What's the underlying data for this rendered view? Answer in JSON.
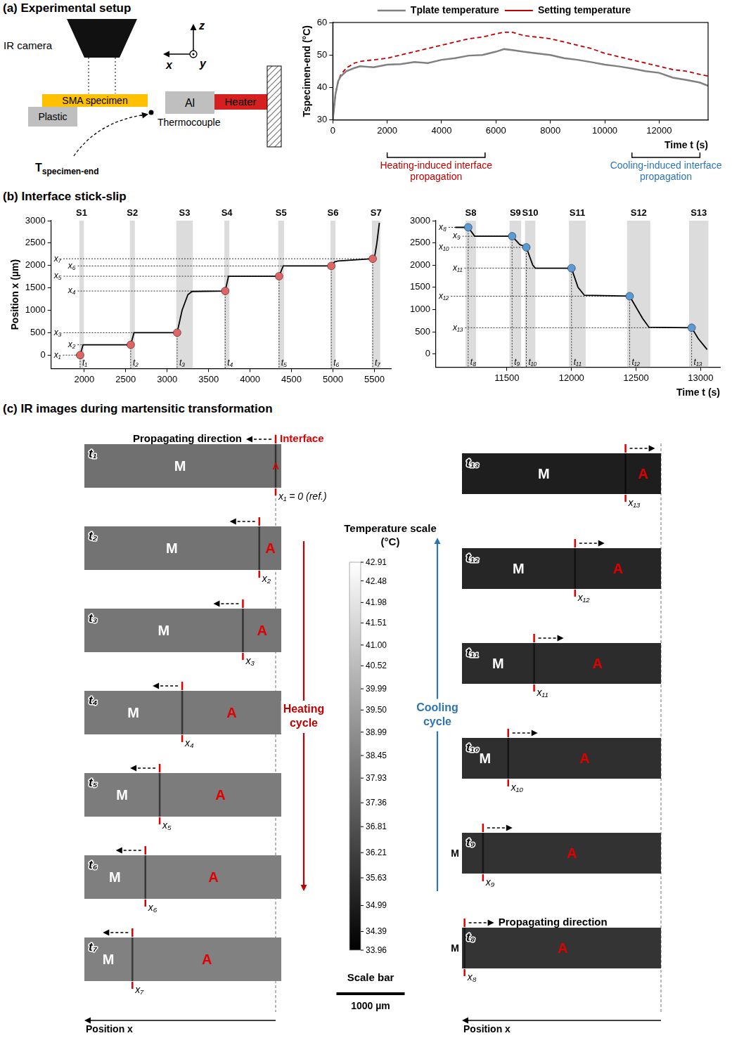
{
  "panel_titles": {
    "a": "(a) Experimental setup",
    "b": "(b) Interface stick-slip",
    "c": "(c) IR images during martensitic transformation"
  },
  "setup_diagram": {
    "camera": "IR camera",
    "specimen": "SMA specimen",
    "plastic": "Plastic",
    "aluminium": "Al",
    "heater": "Heater",
    "thermocouple": "Thermocouple",
    "sensor": "Tspecimen-end",
    "axes": {
      "x": "x",
      "y": "y",
      "z": "z"
    }
  },
  "chart_data": [
    {
      "type": "line",
      "x_label": "Time t (s)",
      "y_label": "Tspecimen-end (°C)",
      "legend": "top",
      "grid": false,
      "xlim": [
        0,
        13800
      ],
      "xticks": [
        0,
        2000,
        4000,
        6000,
        8000,
        10000,
        12000
      ],
      "ylim": [
        30,
        60
      ],
      "yticks": [
        30,
        40,
        50,
        60
      ],
      "series": [
        {
          "name": "Tplate temperature",
          "color": "#808080",
          "line_style": "solid",
          "x": [
            0,
            100,
            200,
            300,
            500,
            800,
            1000,
            1500,
            2000,
            2500,
            3000,
            3500,
            4000,
            4500,
            5000,
            5500,
            6000,
            6300,
            6600,
            7000,
            7500,
            8000,
            8500,
            9000,
            9500,
            10000,
            10500,
            11000,
            11500,
            12000,
            12500,
            13000,
            13500,
            13800
          ],
          "values": [
            30,
            38,
            42,
            43.5,
            45,
            46,
            46.5,
            46.2,
            47,
            47.2,
            47.8,
            47.5,
            48.5,
            49,
            49.8,
            50,
            51,
            51.8,
            51.5,
            51,
            50.5,
            50,
            49,
            48.5,
            47.8,
            47,
            46.5,
            45.8,
            45,
            44.5,
            43,
            42.3,
            41.5,
            40.5
          ]
        },
        {
          "name": "Setting temperature",
          "color": "#c00000",
          "line_style": "dashed",
          "x": [
            0,
            100,
            200,
            300,
            500,
            800,
            1000,
            1500,
            2000,
            2500,
            3000,
            3500,
            4000,
            4500,
            5000,
            5500,
            6000,
            6300,
            6600,
            7000,
            7500,
            8000,
            8500,
            9000,
            9500,
            10000,
            10500,
            11000,
            11500,
            12000,
            12500,
            13000,
            13500,
            13800
          ],
          "values": [
            30,
            38,
            42,
            44,
            46,
            47.5,
            48,
            48.5,
            49,
            50,
            51,
            52,
            53,
            54,
            55,
            55.5,
            56.5,
            57,
            57,
            56,
            55.5,
            55,
            54,
            53,
            52,
            50.5,
            49.5,
            48.5,
            47.5,
            46.5,
            45.5,
            45,
            44,
            43.5
          ]
        }
      ],
      "annotations": [
        {
          "text": "Heating-induced interface propagation",
          "start": 2000,
          "end": 5600,
          "color": "#c00000"
        },
        {
          "text": "Cooling-induced interface propagation",
          "start": 11000,
          "end": 13500,
          "color": "#2e75b6"
        }
      ]
    },
    {
      "type": "line",
      "y_label": "Position x (µm)",
      "grid": false,
      "xlim": [
        1600,
        5700
      ],
      "xticks": [
        2000,
        2500,
        3000,
        3500,
        4000,
        4500,
        5000,
        5500
      ],
      "ylim": [
        -300,
        3000
      ],
      "yticks": [
        0,
        500,
        1000,
        1500,
        2000,
        2500,
        3000
      ],
      "stages": [
        {
          "label": "S1",
          "start": 1940,
          "end": 1995
        },
        {
          "label": "S2",
          "start": 2550,
          "end": 2610
        },
        {
          "label": "S3",
          "start": 3110,
          "end": 3310
        },
        {
          "label": "S4",
          "start": 3690,
          "end": 3750
        },
        {
          "label": "S5",
          "start": 4340,
          "end": 4410
        },
        {
          "label": "S6",
          "start": 4970,
          "end": 5030
        },
        {
          "label": "S7",
          "start": 5470,
          "end": 5570
        }
      ],
      "series": [
        {
          "type": "line",
          "line_style": "solid",
          "color": "#000000",
          "x": [
            1900,
            1950,
            1985,
            2560,
            2600,
            3120,
            3180,
            3250,
            3300,
            3700,
            3740,
            4350,
            4400,
            4980,
            5020,
            5060,
            5480,
            5500,
            5530,
            5560
          ],
          "values": [
            0,
            0,
            230,
            230,
            500,
            500,
            1000,
            1350,
            1420,
            1430,
            1760,
            1760,
            1990,
            1990,
            2080,
            2100,
            2150,
            2160,
            2500,
            2950
          ]
        },
        {
          "type": "scatter",
          "marker": "circle",
          "color": "#e06666",
          "x": [
            1950,
            2560,
            3120,
            3700,
            4350,
            4980,
            5480
          ],
          "values": [
            0,
            230,
            500,
            1430,
            1760,
            1990,
            2150
          ],
          "time_labels": [
            "t₁",
            "t₂",
            "t₃",
            "t₄",
            "t₅",
            "t₆",
            "t₇"
          ],
          "position_labels": [
            "x₁",
            "x₂",
            "x₃",
            "x₄",
            "x₅",
            "x₆",
            "x₇"
          ]
        }
      ]
    },
    {
      "type": "line",
      "x_label": "Time t (s)",
      "grid": false,
      "xlim": [
        10950,
        13150
      ],
      "xticks": [
        11500,
        12000,
        12500,
        13000
      ],
      "ylim": [
        -300,
        3000
      ],
      "yticks": [
        0,
        500,
        1000,
        1500,
        2000,
        2500,
        3000
      ],
      "stages": [
        {
          "label": "S8",
          "start": 11180,
          "end": 11260
        },
        {
          "label": "S9",
          "start": 11520,
          "end": 11610
        },
        {
          "label": "S10",
          "start": 11640,
          "end": 11720
        },
        {
          "label": "S11",
          "start": 11980,
          "end": 12110
        },
        {
          "label": "S12",
          "start": 12430,
          "end": 12610
        },
        {
          "label": "S13",
          "start": 12910,
          "end": 13060
        }
      ],
      "series": [
        {
          "type": "line",
          "line_style": "solid",
          "color": "#000000",
          "x": [
            11100,
            11200,
            11250,
            11540,
            11600,
            11620,
            11650,
            11700,
            11720,
            12000,
            12050,
            12100,
            12450,
            12550,
            12600,
            12930,
            12980,
            13050
          ],
          "values": [
            2850,
            2850,
            2650,
            2650,
            2460,
            2440,
            2400,
            2000,
            1930,
            1930,
            1500,
            1320,
            1300,
            800,
            600,
            590,
            350,
            100
          ]
        },
        {
          "type": "scatter",
          "marker": "circle",
          "color": "#5b9bd5",
          "x": [
            11200,
            11540,
            11650,
            12000,
            12450,
            12930
          ],
          "values": [
            2850,
            2650,
            2400,
            1930,
            1300,
            590
          ],
          "time_labels": [
            "t₈",
            "t₉",
            "t₁₀",
            "t₁₁",
            "t₁₂",
            "t₁₃"
          ],
          "position_labels": [
            "x₈",
            "x₉",
            "x₁₀",
            "x₁₁",
            "x₁₂",
            "x₁₃"
          ]
        }
      ]
    }
  ],
  "ir_images": {
    "interface_label": "Interface",
    "direction_label": "Propagating direction",
    "position_label": "Position x",
    "phase_labels": {
      "martensite": "M",
      "austenite": "A"
    },
    "color_scale": {
      "title": "Temperature scale (°C)",
      "range": [
        33.96,
        42.91
      ],
      "ticks": [
        42.91,
        42.48,
        41.98,
        41.51,
        {
          "value": 41,
          "label": "41.00"
        },
        40.52,
        39.99,
        {
          "value": 39.5,
          "label": "39.50"
        },
        38.99,
        38.45,
        37.93,
        37.36,
        36.81,
        36.21,
        35.63,
        34.99,
        34.39,
        33.96
      ]
    },
    "scale_bar": {
      "title": "Scale bar",
      "length": 1000,
      "label": "1000 µm"
    },
    "heating": {
      "label": "Heating cycle",
      "color": "#c00000",
      "frames": [
        {
          "time_label": "t₁",
          "position_label": "x₁ = 0 (ref.)",
          "interface_position": 0,
          "temperature": 37.9
        },
        {
          "time_label": "t₂",
          "position_label": "x₂",
          "interface_position": 240,
          "temperature": 38.0
        },
        {
          "time_label": "t₃",
          "position_label": "x₃",
          "interface_position": 480,
          "temperature": 38.1
        },
        {
          "time_label": "t₄",
          "position_label": "x₄",
          "interface_position": 1370,
          "temperature": 38.2
        },
        {
          "time_label": "t₅",
          "position_label": "x₅",
          "interface_position": 1700,
          "temperature": 38.3
        },
        {
          "time_label": "t₆",
          "position_label": "x₆",
          "interface_position": 1910,
          "temperature": 38.4
        },
        {
          "time_label": "t₇",
          "position_label": "x₇",
          "interface_position": 2100,
          "temperature": 38.5
        }
      ]
    },
    "cooling": {
      "label": "Cooling cycle",
      "color": "#2e75b6",
      "frames": [
        {
          "time_label": "t₁₃",
          "position_label": "x₁₃",
          "interface_position": 520,
          "temperature": 35.0
        },
        {
          "time_label": "t₁₂",
          "position_label": "x₁₂",
          "interface_position": 1260,
          "temperature": 35.3
        },
        {
          "time_label": "t₁₁",
          "position_label": "x₁₁",
          "interface_position": 1860,
          "temperature": 35.5
        },
        {
          "time_label": "t₁₀",
          "position_label": "x₁₀",
          "interface_position": 2240,
          "temperature": 35.6
        },
        {
          "time_label": "t₉",
          "position_label": "x₉",
          "interface_position": 2610,
          "temperature": 35.7
        },
        {
          "time_label": "t₈",
          "position_label": "x₈",
          "interface_position": 2880,
          "temperature": 35.8
        }
      ]
    }
  }
}
